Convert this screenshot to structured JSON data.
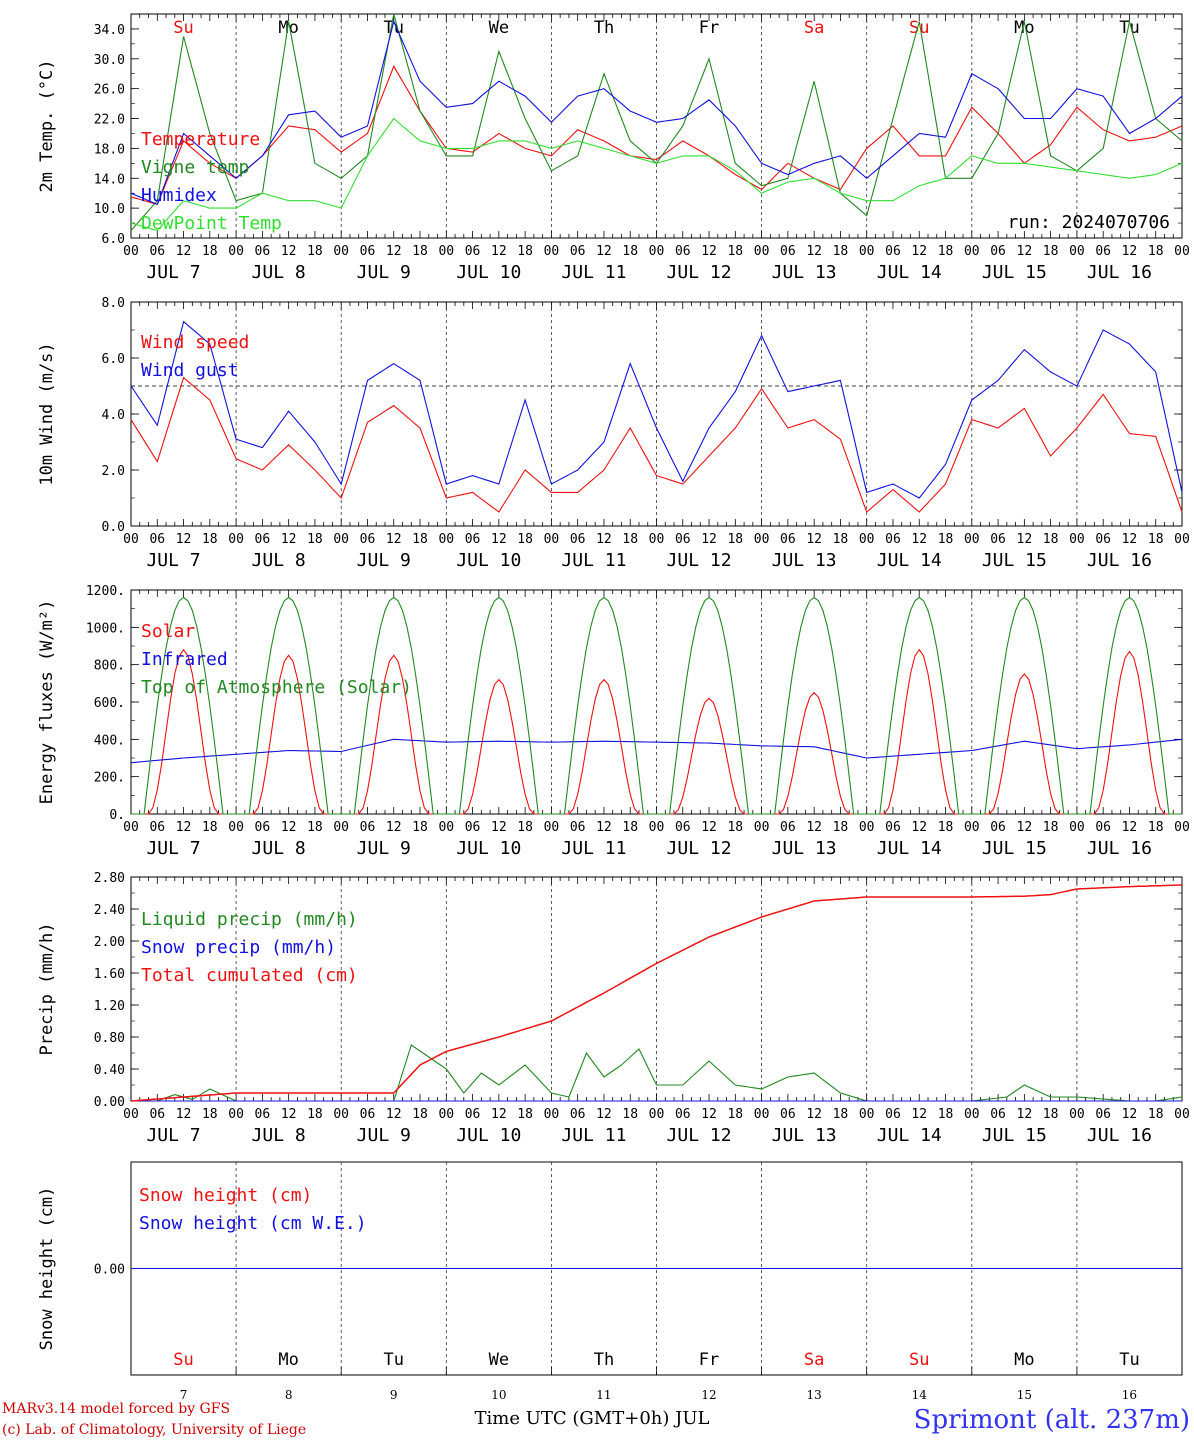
{
  "footer": {
    "model": "MARv3.14 model forced by GFS",
    "lab": "(c) Lab. of Climatology, University of Liege",
    "xaxis": "Time UTC (GMT+0h) JUL",
    "station": "Sprimont (alt. 237m)"
  },
  "time_axis": {
    "hour_labels": [
      "00",
      "06",
      "12",
      "18"
    ],
    "dates": [
      "JUL  7",
      "JUL  8",
      "JUL  9",
      "JUL 10",
      "JUL 11",
      "JUL 12",
      "JUL 13",
      "JUL 14",
      "JUL 15",
      "JUL 16"
    ],
    "weekdays": [
      "Su",
      "Mo",
      "Tu",
      "We",
      "Th",
      "Fr",
      "Sa",
      "Su",
      "Mo",
      "Tu"
    ],
    "weekday_colors": [
      "#ee1111",
      "#000000",
      "#000000",
      "#000000",
      "#000000",
      "#000000",
      "#ee1111",
      "#ee1111",
      "#000000",
      "#000000"
    ],
    "day_numbers": [
      "7",
      "8",
      "9",
      "10",
      "11",
      "12",
      "13",
      "14",
      "15",
      "16"
    ]
  },
  "chart_data": [
    {
      "type": "line",
      "id": "temperature",
      "ylabel": "2m Temp. (°C)",
      "ylim": [
        6,
        36
      ],
      "yticks": [
        6,
        10,
        14,
        18,
        22,
        26,
        30,
        34
      ],
      "ytick_labels": [
        "6.0",
        "10.0",
        "14.0",
        "18.0",
        "22.0",
        "26.0",
        "30.0",
        "34.0"
      ],
      "annotation": "run: 2024070706",
      "x_unit": "hours since JUL 7 00 UTC",
      "series": [
        {
          "name": "Temperature",
          "color": "#ee1111",
          "x": [
            0,
            6,
            12,
            18,
            24,
            30,
            36,
            42,
            48,
            54,
            60,
            66,
            72,
            78,
            84,
            90,
            96,
            102,
            108,
            114,
            120,
            126,
            132,
            138,
            144,
            150,
            156,
            162,
            168,
            174,
            180,
            186,
            192,
            198,
            204,
            210,
            216,
            222,
            228,
            234,
            240
          ],
          "values": [
            11.5,
            10.5,
            19,
            16,
            14,
            17,
            21,
            20.5,
            17.5,
            20,
            29,
            23,
            18,
            17.5,
            20,
            18,
            17,
            20.5,
            19,
            17,
            16.5,
            19,
            17,
            14.5,
            12.5,
            16,
            14,
            12.5,
            18,
            21,
            17,
            17,
            23.5,
            20,
            16,
            18.5,
            23.5,
            20.5,
            19,
            19.5,
            21
          ]
        },
        {
          "name": "Vigne temp",
          "color": "#228822",
          "x": [
            0,
            6,
            12,
            18,
            24,
            30,
            36,
            42,
            48,
            54,
            60,
            66,
            72,
            78,
            84,
            90,
            96,
            102,
            108,
            114,
            120,
            126,
            132,
            138,
            144,
            150,
            156,
            162,
            168,
            174,
            180,
            186,
            192,
            198,
            204,
            210,
            216,
            222,
            228,
            234,
            240
          ],
          "values": [
            7,
            11,
            33,
            20,
            11,
            12,
            35,
            16,
            14,
            17,
            36,
            23,
            17,
            17,
            31,
            22,
            15,
            17,
            28,
            19,
            16,
            21,
            30,
            16,
            13,
            14,
            27,
            12,
            9,
            22,
            35,
            14,
            14,
            20,
            35,
            17,
            15,
            18,
            35,
            22,
            19
          ]
        },
        {
          "name": "Humidex",
          "color": "#1111dd",
          "x": [
            0,
            6,
            12,
            18,
            24,
            30,
            36,
            42,
            48,
            54,
            60,
            66,
            72,
            78,
            84,
            90,
            96,
            102,
            108,
            114,
            120,
            126,
            132,
            138,
            144,
            150,
            156,
            162,
            168,
            174,
            180,
            186,
            192,
            198,
            204,
            210,
            216,
            222,
            228,
            234,
            240
          ],
          "values": [
            12,
            10.5,
            20,
            17,
            14,
            17,
            22.5,
            23,
            19.5,
            21,
            35,
            27,
            23.5,
            24,
            27,
            25,
            21.5,
            25,
            26,
            23,
            21.5,
            22,
            24.5,
            21,
            16,
            14.5,
            16,
            17,
            14,
            17,
            20,
            19.5,
            28,
            26,
            22,
            22,
            26,
            25,
            20,
            22,
            25
          ]
        },
        {
          "name": "DewPoint Temp",
          "color": "#33dd33",
          "x": [
            0,
            6,
            12,
            18,
            24,
            30,
            36,
            42,
            48,
            54,
            60,
            66,
            72,
            78,
            84,
            90,
            96,
            102,
            108,
            114,
            120,
            126,
            132,
            138,
            144,
            150,
            156,
            162,
            168,
            174,
            180,
            186,
            192,
            198,
            204,
            210,
            216,
            222,
            228,
            234,
            240
          ],
          "values": [
            8,
            7,
            11,
            10,
            10,
            12,
            11,
            11,
            10,
            17,
            22,
            19,
            18,
            18,
            19,
            19,
            18,
            19,
            18,
            17,
            16,
            17,
            17,
            15,
            12,
            13.5,
            14,
            12,
            11,
            11,
            13,
            14,
            17,
            16,
            16,
            15.5,
            15,
            14.5,
            14,
            14.5,
            16
          ]
        }
      ]
    },
    {
      "type": "line",
      "id": "wind",
      "ylabel": "10m Wind (m/s)",
      "ylim": [
        0,
        8
      ],
      "yticks": [
        0,
        2,
        4,
        6,
        8
      ],
      "ytick_labels": [
        "0.0",
        "2.0",
        "4.0",
        "6.0",
        "8.0"
      ],
      "hline": 5,
      "x_unit": "hours since JUL 7 00 UTC",
      "series": [
        {
          "name": "Wind speed",
          "color": "#ee1111",
          "x": [
            0,
            6,
            12,
            18,
            24,
            30,
            36,
            42,
            48,
            54,
            60,
            66,
            72,
            78,
            84,
            90,
            96,
            102,
            108,
            114,
            120,
            126,
            132,
            138,
            144,
            150,
            156,
            162,
            168,
            174,
            180,
            186,
            192,
            198,
            204,
            210,
            216,
            222,
            228,
            234,
            240
          ],
          "values": [
            3.8,
            2.3,
            5.3,
            4.5,
            2.4,
            2,
            2.9,
            2,
            1,
            3.7,
            4.3,
            3.5,
            1,
            1.2,
            0.5,
            2,
            1.2,
            1.2,
            2,
            3.5,
            1.8,
            1.5,
            2.5,
            3.5,
            4.9,
            3.5,
            3.8,
            3.1,
            0.5,
            1.3,
            0.5,
            1.5,
            3.8,
            3.5,
            4.2,
            2.5,
            3.5,
            4.7,
            3.3,
            3.2,
            0.5
          ]
        },
        {
          "name": "Wind gust",
          "color": "#1111dd",
          "x": [
            0,
            6,
            12,
            18,
            24,
            30,
            36,
            42,
            48,
            54,
            60,
            66,
            72,
            78,
            84,
            90,
            96,
            102,
            108,
            114,
            120,
            126,
            132,
            138,
            144,
            150,
            156,
            162,
            168,
            174,
            180,
            186,
            192,
            198,
            204,
            210,
            216,
            222,
            228,
            234,
            240
          ],
          "values": [
            5,
            3.6,
            7.3,
            6.5,
            3.1,
            2.8,
            4.1,
            3,
            1.5,
            5.2,
            5.8,
            5.2,
            1.5,
            1.8,
            1.5,
            4.5,
            1.5,
            2,
            3,
            5.8,
            3.5,
            1.6,
            3.5,
            4.8,
            6.8,
            4.8,
            5,
            5.2,
            1.2,
            1.5,
            1,
            2.2,
            4.5,
            5.2,
            6.3,
            5.5,
            5,
            7,
            6.5,
            5.5,
            1.2
          ]
        }
      ]
    },
    {
      "type": "line",
      "id": "energy",
      "ylabel": "Energy fluxes (W/m²)",
      "ylim": [
        0,
        1200
      ],
      "yticks": [
        0,
        200,
        400,
        600,
        800,
        1000,
        1200
      ],
      "ytick_labels": [
        "0.",
        "200.",
        "400.",
        "600.",
        "800.",
        "1000.",
        "1200."
      ],
      "x_unit": "hours since JUL 7 00 UTC",
      "series": [
        {
          "name": "Solar",
          "color": "#ee1111",
          "solar_peaks": [
            880,
            850,
            850,
            720,
            720,
            620,
            650,
            880,
            750,
            870
          ]
        },
        {
          "name": "Infrared",
          "color": "#1111dd",
          "x": [
            0,
            12,
            24,
            36,
            48,
            60,
            72,
            84,
            96,
            108,
            120,
            132,
            144,
            156,
            168,
            180,
            192,
            204,
            216,
            228,
            240
          ],
          "values": [
            275,
            300,
            320,
            340,
            335,
            400,
            385,
            390,
            385,
            390,
            385,
            380,
            365,
            360,
            300,
            320,
            340,
            390,
            350,
            370,
            400
          ]
        },
        {
          "name": "Top of Atmosphere (Solar)",
          "color": "#228822",
          "toa_peak": 1160
        }
      ]
    },
    {
      "type": "line",
      "id": "precip",
      "ylabel": "Precip (mm/h)",
      "ylim": [
        0,
        2.8
      ],
      "yticks": [
        0,
        0.4,
        0.8,
        1.2,
        1.6,
        2.0,
        2.4,
        2.8
      ],
      "ytick_labels": [
        "0.00",
        "0.40",
        "0.80",
        "1.20",
        "1.60",
        "2.00",
        "2.40",
        "2.80"
      ],
      "x_unit": "hours since JUL 7 00 UTC",
      "series": [
        {
          "name": "Liquid precip (mm/h)",
          "color": "#228822",
          "x": [
            0,
            6,
            10,
            14,
            18,
            24,
            48,
            60,
            64,
            68,
            72,
            76,
            80,
            84,
            90,
            96,
            100,
            104,
            108,
            112,
            116,
            120,
            126,
            132,
            138,
            144,
            150,
            156,
            162,
            168,
            180,
            192,
            200,
            204,
            210,
            216,
            228,
            234,
            240
          ],
          "values": [
            0,
            0,
            0.08,
            0.02,
            0.15,
            0,
            0,
            0,
            0.7,
            0.55,
            0.4,
            0.1,
            0.35,
            0.2,
            0.45,
            0.1,
            0.05,
            0.6,
            0.3,
            0.45,
            0.65,
            0.2,
            0.2,
            0.5,
            0.2,
            0.15,
            0.3,
            0.35,
            0.1,
            0,
            0,
            0,
            0.05,
            0.2,
            0.05,
            0.05,
            0,
            0,
            0.05
          ]
        },
        {
          "name": "Snow precip (mm/h)",
          "color": "#1111dd",
          "x": [
            0,
            240
          ],
          "values": [
            0,
            0
          ]
        },
        {
          "name": "Total cumulated (cm)",
          "color": "#ee1111",
          "x": [
            0,
            12,
            24,
            60,
            66,
            72,
            84,
            96,
            108,
            120,
            132,
            144,
            156,
            168,
            180,
            192,
            204,
            210,
            216,
            228,
            240
          ],
          "values": [
            0,
            0.05,
            0.1,
            0.1,
            0.45,
            0.62,
            0.8,
            1.0,
            1.35,
            1.72,
            2.05,
            2.3,
            2.5,
            2.55,
            2.55,
            2.55,
            2.56,
            2.58,
            2.65,
            2.68,
            2.7
          ]
        }
      ]
    },
    {
      "type": "line",
      "id": "snow",
      "ylabel": "Snow height (cm)",
      "ylim": [
        -1,
        1
      ],
      "yticks": [
        0
      ],
      "ytick_labels": [
        "0.00"
      ],
      "x_unit": "hours since JUL 7 00 UTC",
      "series": [
        {
          "name": "Snow height (cm)",
          "color": "#ee1111",
          "x": [
            0,
            240
          ],
          "values": [
            0,
            0
          ]
        },
        {
          "name": "Snow height (cm W.E.)",
          "color": "#1111dd",
          "x": [
            0,
            240
          ],
          "values": [
            0,
            0
          ]
        }
      ]
    }
  ]
}
